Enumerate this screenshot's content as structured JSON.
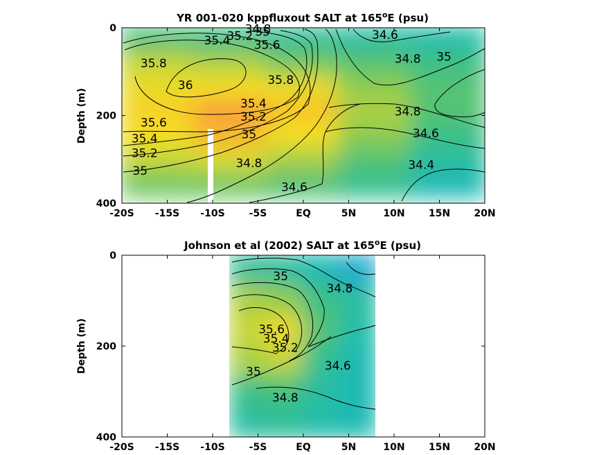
{
  "chart_data": [
    {
      "type": "contour",
      "title_main": "YR 001-020 kppfluxout SALT at 165",
      "title_sup": "o",
      "title_tail": "E (psu)",
      "ylabel": "Depth (m)",
      "xlim": [
        -20,
        20
      ],
      "ylim": [
        0,
        400
      ],
      "x_ticks": [
        -20,
        -15,
        -10,
        -5,
        0,
        5,
        10,
        15,
        20
      ],
      "x_tick_labels": [
        "-20S",
        "-15S",
        "-10S",
        "-5S",
        "EQ",
        "5N",
        "10N",
        "15N",
        "20N"
      ],
      "y_ticks": [
        0,
        200,
        400
      ],
      "y_tick_labels": [
        "0",
        "200",
        "400"
      ],
      "data_extent": {
        "lat": [
          -20,
          20
        ],
        "depth": [
          0,
          385
        ]
      },
      "mask_column": {
        "lat": [
          -10.5,
          -10
        ],
        "depth": [
          225,
          385
        ]
      },
      "colormap": [
        "#20a0e0",
        "#1fbcb0",
        "#40c080",
        "#90cc50",
        "#d8d830",
        "#f8e020",
        "#f8a038"
      ],
      "color_range": [
        34.4,
        36.0
      ],
      "field": [
        [
          34.95,
          34.9,
          34.8,
          34.75,
          34.7
        ],
        [
          35.4,
          35.3,
          35.1,
          35.0,
          34.9
        ],
        [
          35.6,
          35.7,
          35.6,
          35.2,
          35.0
        ],
        [
          35.8,
          36.05,
          35.85,
          35.3,
          35.0
        ],
        [
          35.7,
          35.9,
          35.7,
          35.2,
          34.9
        ],
        [
          35.4,
          35.5,
          35.3,
          35.0,
          34.75
        ],
        [
          35.1,
          35.1,
          35.0,
          34.85,
          34.65
        ]
      ],
      "contours": [
        {
          "label": "35.8",
          "lat": -16.5,
          "depth": 90
        },
        {
          "label": "36",
          "lat": -13,
          "depth": 140
        },
        {
          "label": "35.6",
          "lat": -16.5,
          "depth": 225
        },
        {
          "label": "35.4",
          "lat": -17.5,
          "depth": 262
        },
        {
          "label": "35.2",
          "lat": -17.5,
          "depth": 295
        },
        {
          "label": "35",
          "lat": -18,
          "depth": 335
        },
        {
          "label": "34.8",
          "lat": -5,
          "depth": 12
        },
        {
          "label": "35",
          "lat": -4.5,
          "depth": 18
        },
        {
          "label": "35.2",
          "lat": -7,
          "depth": 28
        },
        {
          "label": "35.4",
          "lat": -9.5,
          "depth": 38
        },
        {
          "label": "35.6",
          "lat": -4,
          "depth": 48
        },
        {
          "label": "35.8",
          "lat": -2.5,
          "depth": 128
        },
        {
          "label": "35.4",
          "lat": -5.5,
          "depth": 182
        },
        {
          "label": "35.2",
          "lat": -5.5,
          "depth": 212
        },
        {
          "label": "35",
          "lat": -6,
          "depth": 252
        },
        {
          "label": "34.8",
          "lat": -6,
          "depth": 318
        },
        {
          "label": "34.6",
          "lat": -1,
          "depth": 372
        },
        {
          "label": "34.6",
          "lat": 9,
          "depth": 25
        },
        {
          "label": "34.8",
          "lat": 11.5,
          "depth": 80
        },
        {
          "label": "35",
          "lat": 15.5,
          "depth": 75
        },
        {
          "label": "34.8",
          "lat": 11.5,
          "depth": 200
        },
        {
          "label": "34.6",
          "lat": 13.5,
          "depth": 250
        },
        {
          "label": "34.4",
          "lat": 13,
          "depth": 322
        }
      ]
    },
    {
      "type": "contour",
      "title_main": "Johnson et al (2002) SALT at 165",
      "title_sup": "o",
      "title_tail": "E (psu)",
      "ylabel": "Depth (m)",
      "xlim": [
        -20,
        20
      ],
      "ylim": [
        0,
        400
      ],
      "x_ticks": [
        -20,
        -15,
        -10,
        -5,
        0,
        5,
        10,
        15,
        20
      ],
      "x_tick_labels": [
        "-20S",
        "-15S",
        "-10S",
        "-5S",
        "EQ",
        "5N",
        "10N",
        "15N",
        "20N"
      ],
      "y_ticks": [
        0,
        200,
        400
      ],
      "y_tick_labels": [
        "0",
        "200",
        "400"
      ],
      "data_extent": {
        "lat": [
          -8,
          8
        ],
        "depth": [
          0,
          400
        ]
      },
      "colormap": [
        "#20a0e0",
        "#1fbcb0",
        "#40c080",
        "#90cc50",
        "#d8d830",
        "#f8e020",
        "#f8a038"
      ],
      "color_range": [
        34.4,
        36.0
      ],
      "field": [
        [
          34.8,
          34.75,
          34.65,
          34.5
        ],
        [
          35.3,
          35.2,
          34.9,
          34.75
        ],
        [
          35.4,
          35.65,
          35.0,
          34.7
        ],
        [
          35.3,
          35.4,
          34.85,
          34.65
        ],
        [
          34.9,
          34.95,
          34.75,
          34.65
        ],
        [
          34.75,
          34.8,
          34.7,
          34.65
        ]
      ],
      "contours": [
        {
          "label": "35",
          "lat": -2.5,
          "depth": 55
        },
        {
          "label": "34.8",
          "lat": 4,
          "depth": 82
        },
        {
          "label": "35.6",
          "lat": -3.5,
          "depth": 172
        },
        {
          "label": "35.4",
          "lat": -3,
          "depth": 192
        },
        {
          "label": "35.2",
          "lat": -2,
          "depth": 212
        },
        {
          "label": "35",
          "lat": -5.5,
          "depth": 265
        },
        {
          "label": "34.6",
          "lat": 3.8,
          "depth": 252
        },
        {
          "label": "34.8",
          "lat": -2,
          "depth": 322
        }
      ]
    }
  ]
}
